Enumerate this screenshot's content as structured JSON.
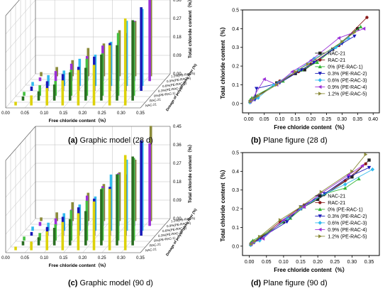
{
  "captions": [
    {
      "letter": "(a)",
      "text": " Graphic model (28 d)"
    },
    {
      "letter": "(b)",
      "text": " Plane figure (28 d)"
    },
    {
      "letter": "(c)",
      "text": " Graphic model (90 d)"
    },
    {
      "letter": "(d)",
      "text": " Plane figure (90 d)"
    }
  ],
  "chart_data": [
    {
      "panel": "(a)",
      "type": "bar",
      "xlabel": "Free chloride content（%）",
      "zlabel": "Total chloride content（%）",
      "depth_label": "Dosage of polyethylene fiber (%)",
      "x_ticks": [
        "0.00",
        "0.05",
        "0.10",
        "0.15",
        "0.20",
        "0.25",
        "0.30",
        "0.35"
      ],
      "z_ticks": [
        "0.00",
        "0.09",
        "0.18",
        "0.27",
        "0.36",
        "0.45"
      ],
      "depth_ticks": [
        "NAC-21",
        "RAC-21",
        "0%(PE-RAC-1)",
        "0.3%(PE-RAC-2)",
        "0.6%(PE-RAC-3)",
        "0.9%(PE-RAC-4)",
        "1.2%(PE-RAC-5)"
      ],
      "ylim": [
        0,
        0.45
      ]
    },
    {
      "panel": "(b)",
      "type": "line",
      "xlabel": "Free chloride content（%）",
      "ylabel": "Total chloride content（%）",
      "x_ticks": [
        "0.00",
        "0.05",
        "0.10",
        "0.15",
        "0.20",
        "0.25",
        "0.30",
        "0.35",
        "0.40"
      ],
      "y_ticks": [
        "0.0",
        "0.1",
        "0.2",
        "0.3",
        "0.4",
        "0.5"
      ],
      "xlim": [
        -0.02,
        0.42
      ],
      "ylim": [
        -0.05,
        0.5
      ],
      "legend": "right",
      "series": [
        {
          "name": "NAC-21",
          "color": "#222222",
          "marker": "square",
          "x": [
            0.005,
            0.01,
            0.02,
            0.09,
            0.15,
            0.18,
            0.27,
            0.35
          ],
          "y": [
            0.01,
            0.02,
            0.03,
            0.11,
            0.16,
            0.18,
            0.29,
            0.4
          ]
        },
        {
          "name": "RAC-21",
          "color": "#8b1a1a",
          "marker": "circle",
          "x": [
            0.006,
            0.012,
            0.025,
            0.1,
            0.16,
            0.2,
            0.29,
            0.38
          ],
          "y": [
            0.012,
            0.022,
            0.035,
            0.12,
            0.17,
            0.21,
            0.31,
            0.46
          ]
        },
        {
          "name": "0% (PE-RAC-1)",
          "color": "#33b533",
          "marker": "triangle",
          "x": [
            0.005,
            0.01,
            0.02,
            0.11,
            0.17,
            0.22,
            0.3,
            0.36
          ],
          "y": [
            0.02,
            0.03,
            0.04,
            0.12,
            0.18,
            0.22,
            0.33,
            0.41
          ]
        },
        {
          "name": "0.3% (PE-RAC-2)",
          "color": "#1a1ab8",
          "marker": "triangle-down",
          "x": [
            0.005,
            0.02,
            0.025,
            0.1,
            0.17,
            0.21,
            0.3,
            0.34
          ],
          "y": [
            0.01,
            0.02,
            0.08,
            0.11,
            0.18,
            0.22,
            0.32,
            0.36
          ]
        },
        {
          "name": "0.6% (PE-RAC-3)",
          "color": "#33bbee",
          "marker": "diamond",
          "x": [
            0.004,
            0.012,
            0.03,
            0.08,
            0.16,
            0.21,
            0.28,
            0.32
          ],
          "y": [
            0.005,
            0.02,
            0.03,
            0.1,
            0.18,
            0.24,
            0.3,
            0.35
          ]
        },
        {
          "name": "0.9% (PE-RAC-4)",
          "color": "#9b30d8",
          "marker": "triangle-left",
          "x": [
            0.004,
            0.01,
            0.05,
            0.09,
            0.14,
            0.2,
            0.29,
            0.37
          ],
          "y": [
            0.01,
            0.02,
            0.13,
            0.1,
            0.17,
            0.23,
            0.35,
            0.4
          ]
        },
        {
          "name": "1.2% (PE-RAC-5)",
          "color": "#8b8b3a",
          "marker": "triangle-right",
          "x": [
            0.005,
            0.015,
            0.03,
            0.09,
            0.15,
            0.19,
            0.3,
            0.34
          ],
          "y": [
            0.01,
            0.025,
            0.04,
            0.1,
            0.17,
            0.21,
            0.33,
            0.38
          ]
        }
      ]
    },
    {
      "panel": "(c)",
      "type": "bar",
      "xlabel": "Free chloride content（%）",
      "zlabel": "Total chloride content（%）",
      "depth_label": "Dosage of polyethylene fiber (%)",
      "x_ticks": [
        "0.00",
        "0.05",
        "0.10",
        "0.15",
        "0.20",
        "0.25",
        "0.30",
        "0.35"
      ],
      "z_ticks": [
        "0.00",
        "0.09",
        "0.18",
        "0.27",
        "0.36",
        "0.45"
      ],
      "depth_ticks": [
        "NAC-21",
        "RAC-21",
        "0%(PE-RAC-1)",
        "0.3%(PE-RAC-2)",
        "0.6%(PE-RAC-3)",
        "0.9%(PE-RAC-4)",
        "1.2%(PE-RAC-5)"
      ],
      "ylim": [
        0,
        0.45
      ]
    },
    {
      "panel": "(d)",
      "type": "line",
      "xlabel": "Free chloride content（%）",
      "ylabel": "Total chloride content（%）",
      "x_ticks": [
        "0.00",
        "0.05",
        "0.10",
        "0.15",
        "0.20",
        "0.25",
        "0.30",
        "0.35"
      ],
      "y_ticks": [
        "0.0",
        "0.1",
        "0.2",
        "0.3",
        "0.4",
        "0.5"
      ],
      "xlim": [
        -0.02,
        0.38
      ],
      "ylim": [
        -0.05,
        0.5
      ],
      "legend": "right",
      "series": [
        {
          "name": "NAC-21",
          "color": "#222222",
          "marker": "square",
          "x": [
            0.005,
            0.01,
            0.03,
            0.1,
            0.15,
            0.2,
            0.3,
            0.35
          ],
          "y": [
            0.01,
            0.02,
            0.04,
            0.13,
            0.2,
            0.25,
            0.37,
            0.46
          ]
        },
        {
          "name": "RAC-21",
          "color": "#8b1a1a",
          "marker": "circle",
          "x": [
            0.006,
            0.012,
            0.035,
            0.09,
            0.16,
            0.21,
            0.28,
            0.34
          ],
          "y": [
            0.012,
            0.025,
            0.05,
            0.13,
            0.22,
            0.27,
            0.35,
            0.44
          ]
        },
        {
          "name": "0% (PE-RAC-1)",
          "color": "#33b533",
          "marker": "triangle",
          "x": [
            0.005,
            0.01,
            0.03,
            0.12,
            0.16,
            0.22,
            0.28,
            0.32
          ],
          "y": [
            0.02,
            0.03,
            0.05,
            0.15,
            0.21,
            0.28,
            0.31,
            0.36
          ]
        },
        {
          "name": "0.3% (PE-RAC-2)",
          "color": "#1a1ab8",
          "marker": "triangle-down",
          "x": [
            0.005,
            0.015,
            0.03,
            0.11,
            0.15,
            0.22,
            0.29,
            0.35
          ],
          "y": [
            0.01,
            0.02,
            0.04,
            0.13,
            0.21,
            0.28,
            0.37,
            0.42
          ]
        },
        {
          "name": "0.6% (PE-RAC-3)",
          "color": "#33bbee",
          "marker": "diamond",
          "x": [
            0.004,
            0.012,
            0.03,
            0.11,
            0.15,
            0.21,
            0.28,
            0.36
          ],
          "y": [
            0.005,
            0.02,
            0.03,
            0.15,
            0.2,
            0.27,
            0.33,
            0.41
          ]
        },
        {
          "name": "0.9% (PE-RAC-4)",
          "color": "#9b30d8",
          "marker": "triangle-left",
          "x": [
            0.004,
            0.01,
            0.04,
            0.1,
            0.16,
            0.2,
            0.29,
            0.33
          ],
          "y": [
            0.01,
            0.02,
            0.04,
            0.14,
            0.21,
            0.27,
            0.38,
            0.43
          ]
        },
        {
          "name": "1.2% (PE-RAC-5)",
          "color": "#8b8b3a",
          "marker": "triangle-right",
          "x": [
            0.005,
            0.015,
            0.03,
            0.09,
            0.15,
            0.21,
            0.3,
            0.34
          ],
          "y": [
            0.01,
            0.025,
            0.05,
            0.14,
            0.21,
            0.29,
            0.4,
            0.49
          ]
        }
      ]
    }
  ]
}
